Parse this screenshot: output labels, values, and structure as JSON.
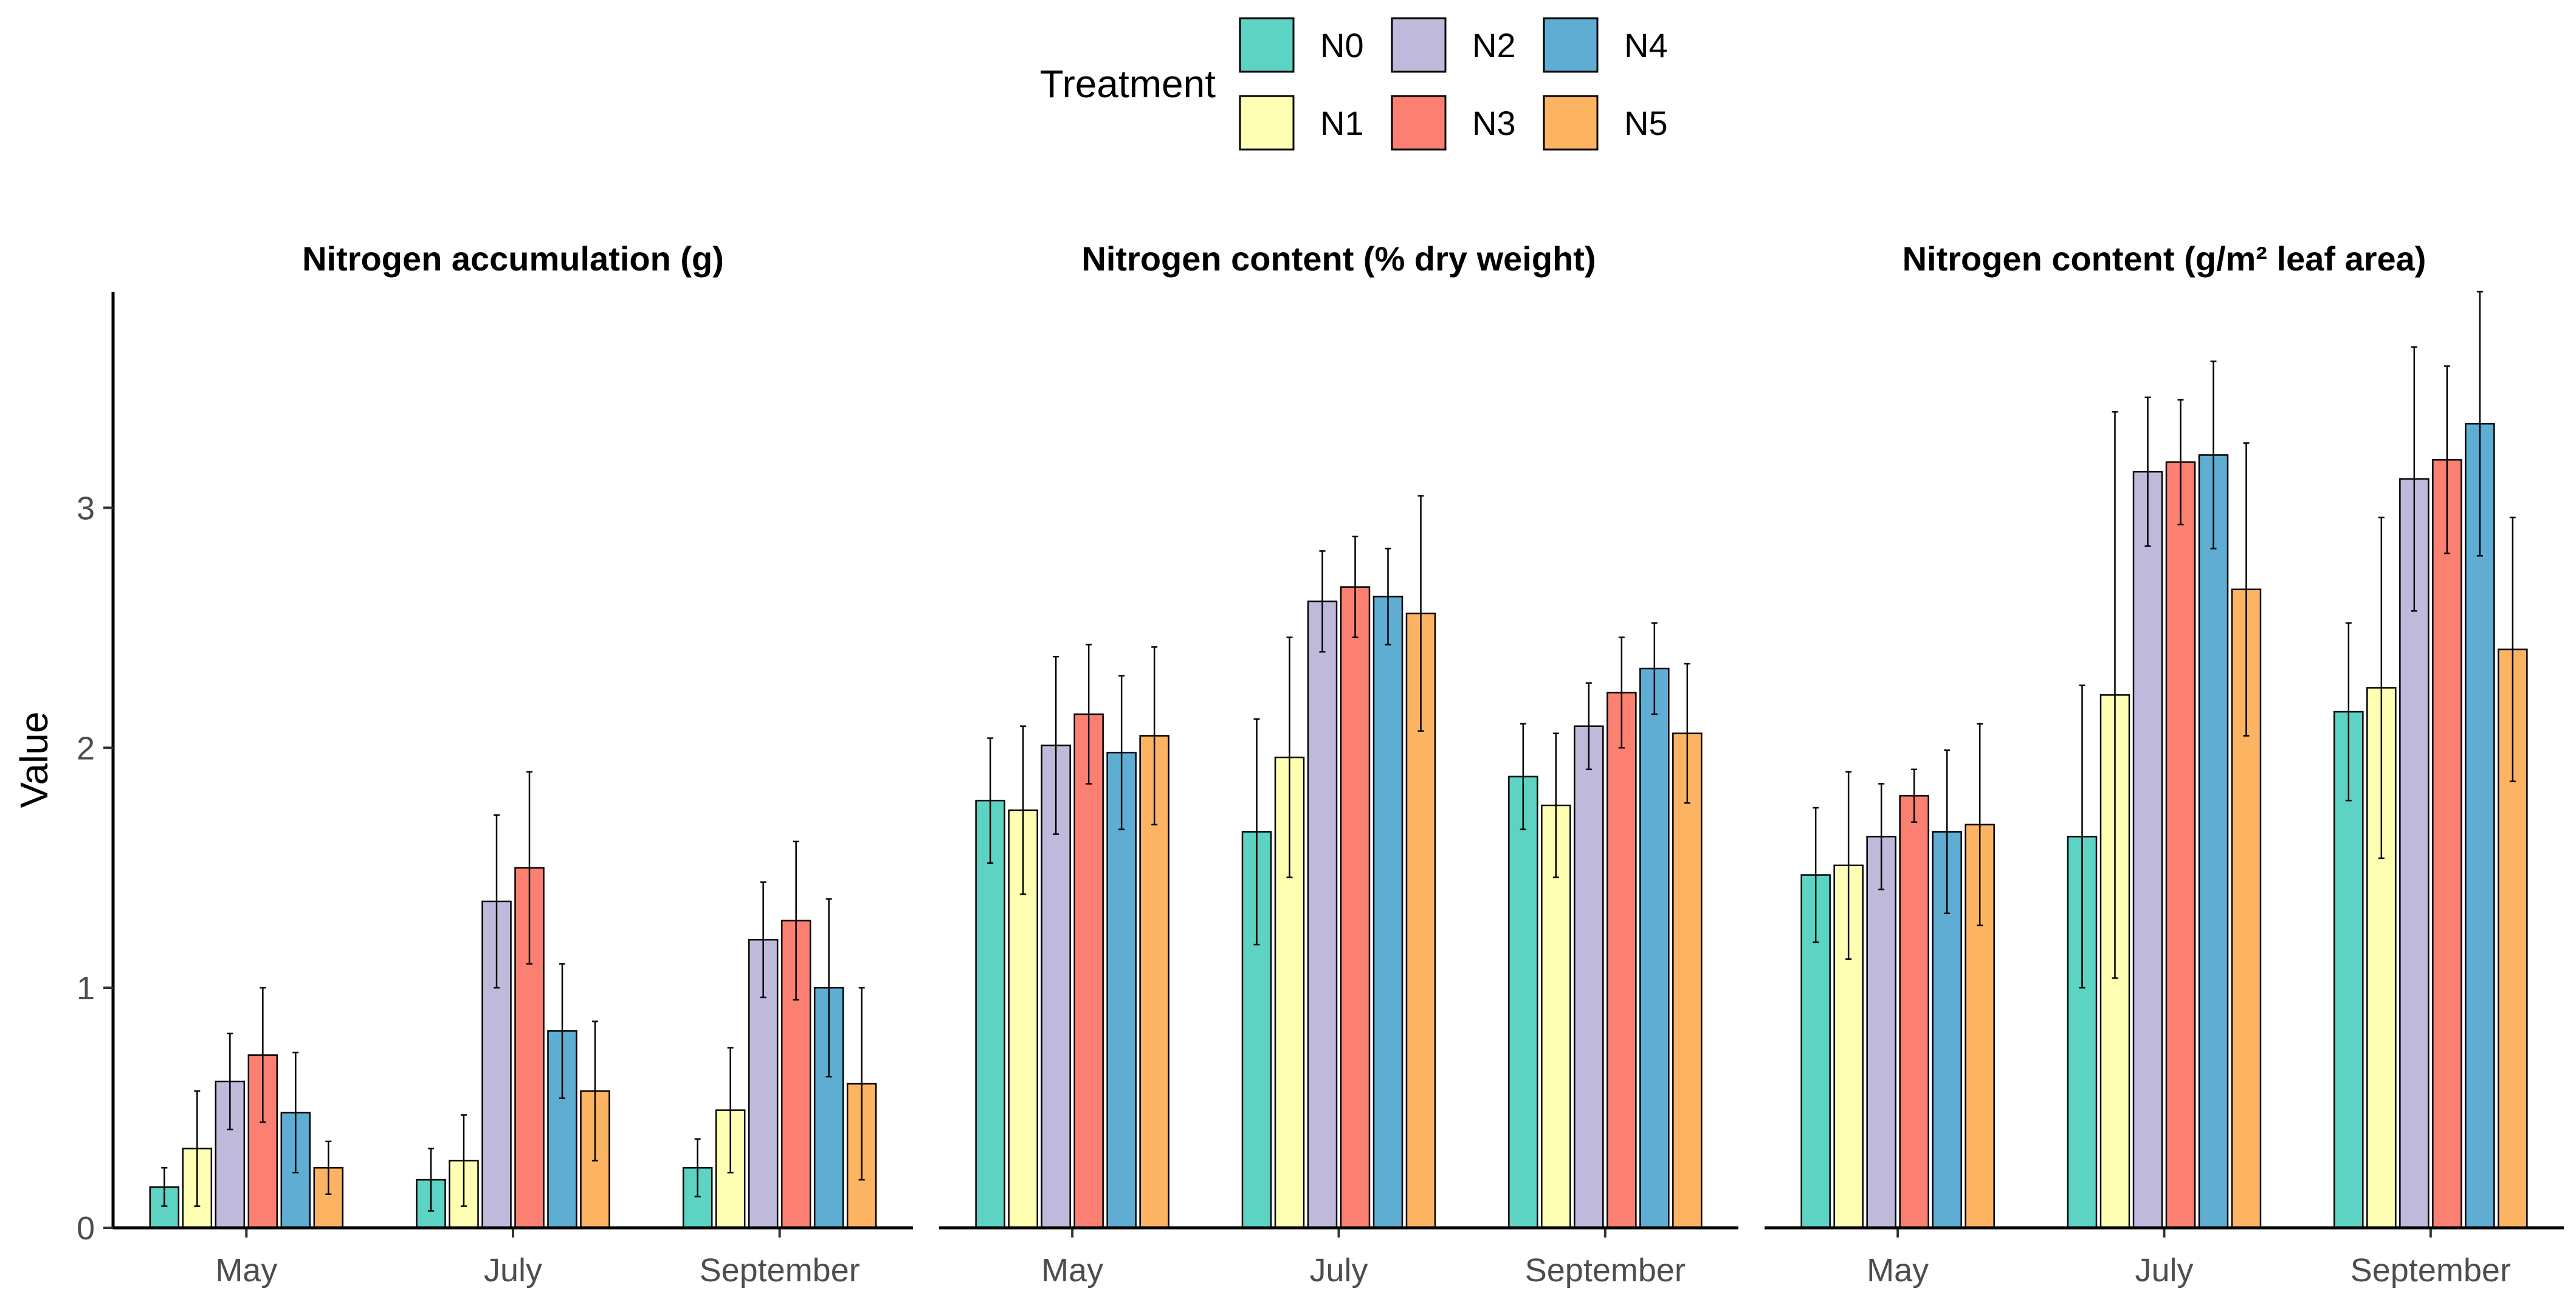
{
  "chart_data": {
    "type": "bar",
    "ylabel": "Value",
    "ylim": [
      0,
      3.9
    ],
    "yticks": [
      0,
      1,
      2,
      3
    ],
    "categories": [
      "May",
      "July",
      "September"
    ],
    "legend": {
      "title": "Treatment",
      "position": "top",
      "entries": [
        "N0",
        "N1",
        "N2",
        "N3",
        "N4",
        "N5"
      ]
    },
    "colors": {
      "N0": "#5cd3c3",
      "N1": "#ffffb3",
      "N2": "#bfbadb",
      "N3": "#fb8072",
      "N4": "#5fadd3",
      "N5": "#fdb462"
    },
    "panels": [
      {
        "title": "Nitrogen accumulation (g)",
        "series": [
          {
            "name": "N0",
            "values": [
              0.17,
              0.2,
              0.25
            ],
            "err": [
              0.08,
              0.13,
              0.12
            ]
          },
          {
            "name": "N1",
            "values": [
              0.33,
              0.28,
              0.49
            ],
            "err": [
              0.24,
              0.19,
              0.26
            ]
          },
          {
            "name": "N2",
            "values": [
              0.61,
              1.36,
              1.2
            ],
            "err": [
              0.2,
              0.36,
              0.24
            ]
          },
          {
            "name": "N3",
            "values": [
              0.72,
              1.5,
              1.28
            ],
            "err": [
              0.28,
              0.4,
              0.33
            ]
          },
          {
            "name": "N4",
            "values": [
              0.48,
              0.82,
              1.0
            ],
            "err": [
              0.25,
              0.28,
              0.37
            ]
          },
          {
            "name": "N5",
            "values": [
              0.25,
              0.57,
              0.6
            ],
            "err": [
              0.11,
              0.29,
              0.4
            ]
          }
        ]
      },
      {
        "title": "Nitrogen content (% dry weight)",
        "series": [
          {
            "name": "N0",
            "values": [
              1.78,
              1.65,
              1.88
            ],
            "err": [
              0.26,
              0.47,
              0.22
            ]
          },
          {
            "name": "N1",
            "values": [
              1.74,
              1.96,
              1.76
            ],
            "err": [
              0.35,
              0.5,
              0.3
            ]
          },
          {
            "name": "N2",
            "values": [
              2.01,
              2.61,
              2.09
            ],
            "err": [
              0.37,
              0.21,
              0.18
            ]
          },
          {
            "name": "N3",
            "values": [
              2.14,
              2.67,
              2.23
            ],
            "err": [
              0.29,
              0.21,
              0.23
            ]
          },
          {
            "name": "N4",
            "values": [
              1.98,
              2.63,
              2.33
            ],
            "err": [
              0.32,
              0.2,
              0.19
            ]
          },
          {
            "name": "N5",
            "values": [
              2.05,
              2.56,
              2.06
            ],
            "err": [
              0.37,
              0.49,
              0.29
            ]
          }
        ]
      },
      {
        "title": "Nitrogen content (g/m² leaf area)",
        "series": [
          {
            "name": "N0",
            "values": [
              1.47,
              1.63,
              2.15
            ],
            "err": [
              0.28,
              0.63,
              0.37
            ]
          },
          {
            "name": "N1",
            "values": [
              1.51,
              2.22,
              2.25
            ],
            "err": [
              0.39,
              1.18,
              0.71
            ]
          },
          {
            "name": "N2",
            "values": [
              1.63,
              3.15,
              3.12
            ],
            "err": [
              0.22,
              0.31,
              0.55
            ]
          },
          {
            "name": "N3",
            "values": [
              1.8,
              3.19,
              3.2
            ],
            "err": [
              0.11,
              0.26,
              0.39
            ]
          },
          {
            "name": "N4",
            "values": [
              1.65,
              3.22,
              3.35
            ],
            "err": [
              0.34,
              0.39,
              0.55
            ]
          },
          {
            "name": "N5",
            "values": [
              1.68,
              2.66,
              2.41
            ],
            "err": [
              0.42,
              0.61,
              0.55
            ]
          }
        ]
      }
    ]
  }
}
